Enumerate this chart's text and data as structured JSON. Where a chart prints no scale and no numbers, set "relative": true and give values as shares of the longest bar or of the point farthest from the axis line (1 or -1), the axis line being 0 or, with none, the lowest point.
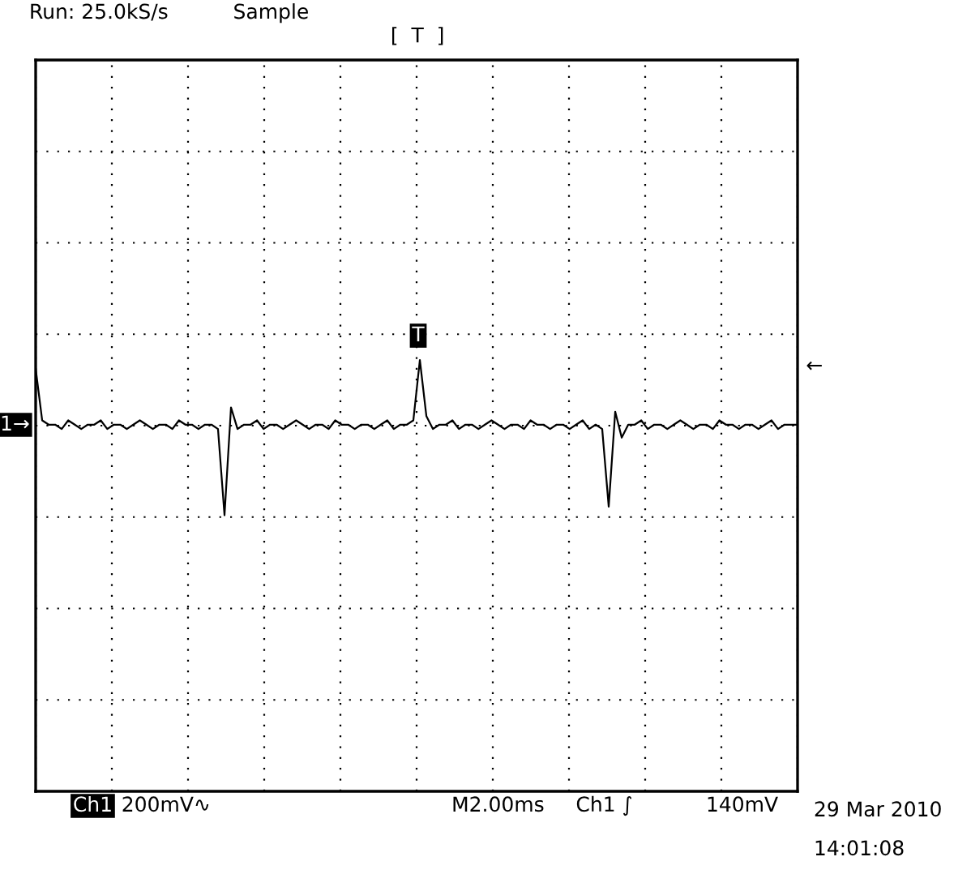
{
  "chart_data": {
    "type": "line",
    "relative": true,
    "grid": true,
    "color": "#000000",
    "categories": [
      null,
      null,
      null,
      null,
      null,
      null,
      null,
      null,
      null,
      null,
      null,
      null,
      null,
      null,
      null,
      null,
      null,
      null,
      null,
      null,
      null,
      null,
      null,
      null,
      null,
      null,
      null,
      null,
      null,
      null,
      null,
      null,
      null,
      null,
      null,
      null,
      null,
      null,
      null,
      null,
      null,
      null,
      null,
      null,
      null,
      null,
      null,
      null,
      null,
      null,
      null,
      null,
      null,
      null,
      null,
      null,
      null,
      null,
      null,
      null,
      null,
      null,
      null,
      null,
      null,
      null,
      null,
      null,
      null,
      null,
      null,
      null,
      null,
      null,
      null,
      null,
      null,
      null,
      null,
      null,
      null,
      null,
      null,
      null,
      null,
      null,
      null,
      null,
      null,
      null,
      null,
      null,
      null,
      null,
      null,
      null,
      null,
      null,
      null,
      null,
      null,
      null,
      null,
      null,
      null,
      null,
      null,
      null,
      null,
      null,
      null,
      null,
      null,
      null,
      null,
      null,
      null,
      null
    ],
    "values": [
      0.98,
      0.86,
      0.85,
      0.85,
      0.84,
      0.86,
      0.85,
      0.84,
      0.85,
      0.85,
      0.86,
      0.84,
      0.85,
      0.85,
      0.84,
      0.85,
      0.86,
      0.85,
      0.84,
      0.85,
      0.85,
      0.84,
      0.86,
      0.85,
      0.85,
      0.84,
      0.85,
      0.85,
      0.84,
      0.64,
      0.89,
      0.84,
      0.85,
      0.85,
      0.86,
      0.84,
      0.85,
      0.85,
      0.84,
      0.85,
      0.86,
      0.85,
      0.84,
      0.85,
      0.85,
      0.84,
      0.86,
      0.85,
      0.85,
      0.84,
      0.85,
      0.85,
      0.84,
      0.85,
      0.86,
      0.84,
      0.85,
      0.85,
      0.86,
      1.0,
      0.87,
      0.84,
      0.85,
      0.85,
      0.86,
      0.84,
      0.85,
      0.85,
      0.84,
      0.85,
      0.86,
      0.85,
      0.84,
      0.85,
      0.85,
      0.84,
      0.86,
      0.85,
      0.85,
      0.84,
      0.85,
      0.85,
      0.84,
      0.85,
      0.86,
      0.84,
      0.85,
      0.84,
      0.66,
      0.88,
      0.82,
      0.85,
      0.85,
      0.86,
      0.84,
      0.85,
      0.85,
      0.84,
      0.85,
      0.86,
      0.85,
      0.84,
      0.85,
      0.85,
      0.84,
      0.86,
      0.85,
      0.85,
      0.84,
      0.85,
      0.85,
      0.84,
      0.85,
      0.86,
      0.84,
      0.85,
      0.85,
      0.85
    ],
    "annotations": [
      "Run: 25.0kS/s",
      "Sample",
      "[  T  ]",
      "T",
      "1→",
      "←",
      "Ch1",
      "200mV∿",
      "M2.00ms",
      "Ch1 ∫",
      "140mV",
      "29 Mar 2010",
      "14:01:08"
    ]
  }
}
